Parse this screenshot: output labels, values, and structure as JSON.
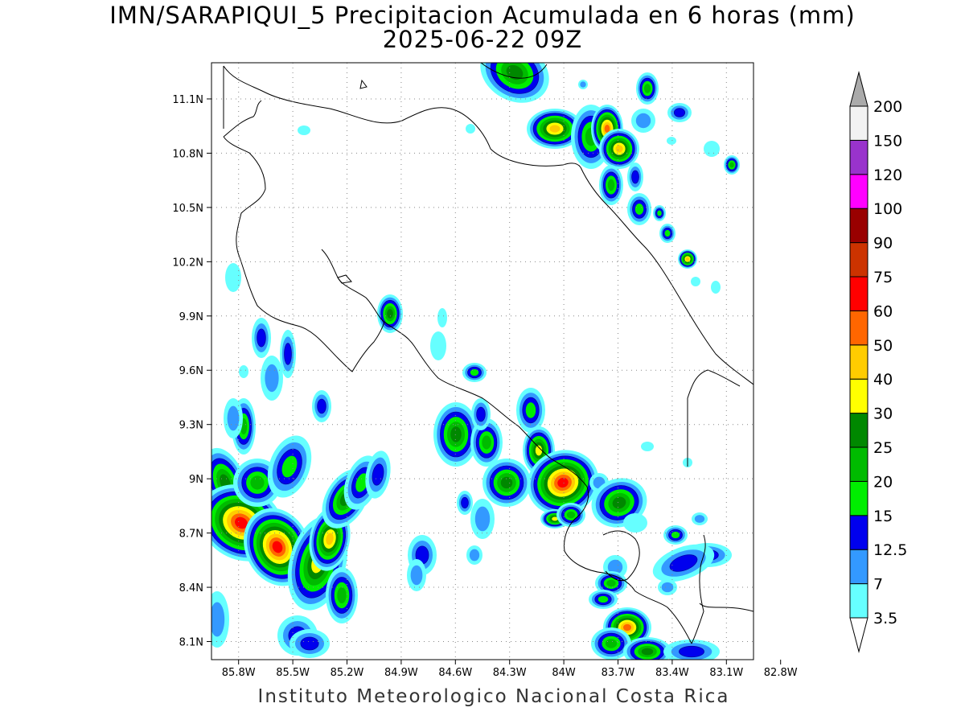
{
  "title": {
    "line1": "IMN/SARAPIQUI_5 Precipitacion Acumulada en 6 horas (mm)",
    "line2": "2025-06-22 09Z"
  },
  "credit": "Instituto Meteorologico Nacional Costa Rica",
  "map": {
    "lon_range": [
      -85.95,
      -82.95
    ],
    "lat_range": [
      8.0,
      11.3
    ],
    "lon_ticks": [
      "85.8W",
      "85.5W",
      "85.2W",
      "84.9W",
      "84.6W",
      "84.3W",
      "84W",
      "83.7W",
      "83.4W",
      "83.1W",
      "82.8W"
    ],
    "lat_ticks": [
      "8.1N",
      "8.4N",
      "8.7N",
      "9N",
      "9.3N",
      "9.6N",
      "9.9N",
      "10.2N",
      "10.5N",
      "10.8N",
      "11.1N"
    ],
    "grid": "dotted"
  },
  "colorbar": {
    "levels": [
      "3.5",
      "7",
      "12.5",
      "15",
      "20",
      "25",
      "30",
      "40",
      "50",
      "60",
      "75",
      "90",
      "100",
      "120",
      "150",
      "200"
    ],
    "colors": [
      "#66ffff",
      "#3399ff",
      "#0000ee",
      "#00ee00",
      "#00bb00",
      "#008800",
      "#ffff00",
      "#ffcc00",
      "#ff6600",
      "#ff0000",
      "#cc3300",
      "#990000",
      "#ff00ff",
      "#9933cc",
      "#f2f2f2"
    ],
    "over_color": "#aaaaaa"
  },
  "legend_colors": {
    "cyan": "#66ffff",
    "lightblue": "#3399ff",
    "blue": "#0000ee",
    "green1": "#00ee00",
    "green2": "#00bb00",
    "green3": "#008800",
    "yellow": "#ffff00",
    "orange": "#ffcc00",
    "darkorange": "#ff6600",
    "red": "#ff0000"
  }
}
